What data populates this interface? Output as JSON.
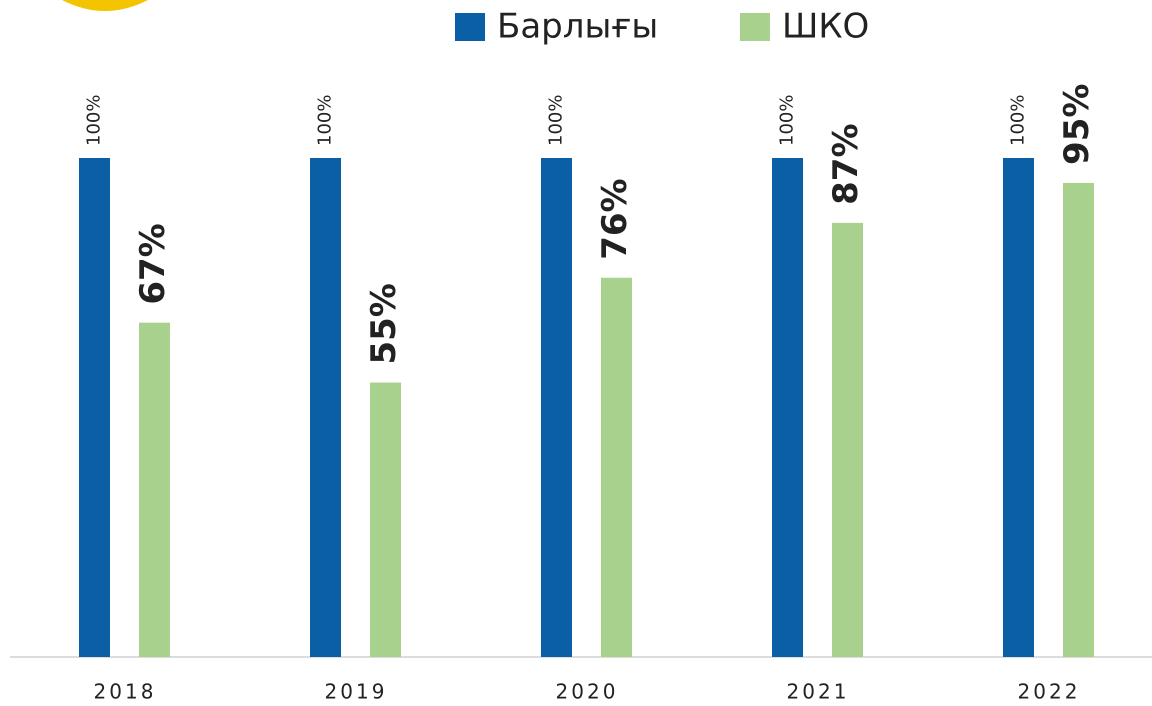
{
  "chart_data": {
    "type": "bar",
    "categories": [
      "2018",
      "2019",
      "2020",
      "2021",
      "2022"
    ],
    "series": [
      {
        "name": "Барлығы",
        "color": "#0b5fa5",
        "values": [
          100,
          100,
          100,
          100,
          100
        ],
        "value_labels": [
          "100%",
          "100%",
          "100%",
          "100%",
          "100%"
        ]
      },
      {
        "name": "ШКО",
        "color": "#a9d18e",
        "values": [
          67,
          55,
          76,
          87,
          95
        ],
        "value_labels": [
          "67%",
          "55%",
          "76%",
          "87%",
          "95%"
        ]
      }
    ],
    "ylim": [
      0,
      100
    ]
  }
}
